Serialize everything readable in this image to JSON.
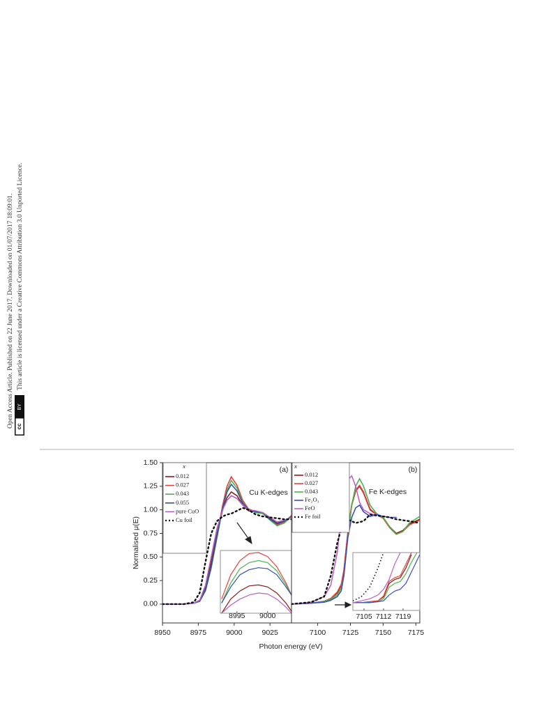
{
  "side_notes": [
    "Open Access Article. Published on 22 June 2017. Downloaded on 01/07/2017 18:09:01.",
    "This article is licensed under a Creative Commons Attribution 3.0 Unported Licence."
  ],
  "badge": [
    "cc",
    "BY"
  ],
  "chart_data": [
    {
      "type": "line",
      "panel_label": "(a)",
      "annotation": "Cu K-edges",
      "legend_title": "x",
      "ylabel": "Normalised μ(E)",
      "xlabel": "Photon energy (eV)",
      "xlim": [
        8950,
        9040
      ],
      "xticks": [
        8950,
        8975,
        9000,
        9025
      ],
      "ylim": [
        -0.2,
        1.5
      ],
      "yticks": [
        {
          "value": 0,
          "label": "0.00"
        },
        {
          "value": 0.25,
          "label": "0.25"
        },
        {
          "value": 0.5,
          "label": "0.50"
        },
        {
          "value": 0.75,
          "label": "0.75"
        },
        {
          "value": 1,
          "label": "1.00"
        },
        {
          "value": 1.25,
          "label": "1.25"
        },
        {
          "value": 1.5,
          "label": "1.50"
        }
      ],
      "x": [
        8950,
        8965,
        8972,
        8976,
        8980,
        8984,
        8988,
        8992,
        8995,
        8998,
        9002,
        9006,
        9010,
        9015,
        9020,
        9025,
        9030,
        9035,
        9040
      ],
      "series": [
        {
          "name": "0.012",
          "color": "#8b1a1a",
          "values": [
            0,
            0,
            0.01,
            0.04,
            0.18,
            0.45,
            0.75,
            1.0,
            1.13,
            1.19,
            1.15,
            1.05,
            0.99,
            0.98,
            0.96,
            0.91,
            0.86,
            0.88,
            0.93
          ]
        },
        {
          "name": "0.027",
          "color": "#e8413c",
          "values": [
            0,
            0,
            0.01,
            0.03,
            0.15,
            0.4,
            0.72,
            1.05,
            1.25,
            1.35,
            1.26,
            1.1,
            1.01,
            0.98,
            0.97,
            0.9,
            0.84,
            0.87,
            0.94
          ]
        },
        {
          "name": "0.043",
          "color": "#4cb34c",
          "values": [
            0,
            0,
            0.01,
            0.03,
            0.14,
            0.38,
            0.7,
            1.02,
            1.21,
            1.31,
            1.23,
            1.08,
            1.0,
            0.97,
            0.96,
            0.89,
            0.83,
            0.86,
            0.93
          ]
        },
        {
          "name": "0.055",
          "color": "#3050a8",
          "values": [
            0,
            0,
            0.01,
            0.03,
            0.15,
            0.4,
            0.72,
            1.02,
            1.19,
            1.27,
            1.2,
            1.07,
            1.0,
            0.98,
            0.97,
            0.9,
            0.85,
            0.88,
            0.93
          ]
        },
        {
          "name": "pure CuO",
          "color": "#b060c0",
          "values": [
            0,
            0,
            0.01,
            0.04,
            0.2,
            0.5,
            0.8,
            1.0,
            1.1,
            1.15,
            1.12,
            1.05,
            1.0,
            0.99,
            0.97,
            0.92,
            0.87,
            0.89,
            0.92
          ]
        },
        {
          "name": "Cu foil",
          "color": "#111111",
          "style": "dotted",
          "values": [
            0,
            0,
            0.02,
            0.12,
            0.45,
            0.75,
            0.88,
            0.93,
            0.95,
            0.96,
            0.99,
            1.02,
            1.0,
            0.95,
            0.93,
            0.92,
            0.91,
            0.9,
            0.9
          ]
        }
      ],
      "inset": {
        "xlim": [
          8992.3,
          9003.9
        ],
        "ylim": [
          1.05,
          1.36
        ],
        "xticks": [
          8995,
          9000
        ],
        "x": [
          8992.5,
          8994,
          8995.5,
          8997,
          8998.5,
          9000,
          9001.5,
          9003,
          9003.9
        ],
        "series": [
          {
            "color": "#e8413c",
            "values": [
              1.12,
              1.24,
              1.31,
              1.345,
              1.35,
              1.33,
              1.28,
              1.2,
              1.14
            ]
          },
          {
            "color": "#4cb34c",
            "values": [
              1.1,
              1.2,
              1.27,
              1.3,
              1.31,
              1.3,
              1.26,
              1.19,
              1.14
            ]
          },
          {
            "color": "#3050a8",
            "values": [
              1.1,
              1.18,
              1.24,
              1.265,
              1.275,
              1.27,
              1.24,
              1.18,
              1.14
            ]
          },
          {
            "color": "#8b1a1a",
            "values": [
              1.05,
              1.12,
              1.16,
              1.185,
              1.19,
              1.18,
              1.15,
              1.1,
              1.06
            ]
          },
          {
            "color": "#b060c0",
            "values": [
              1.05,
              1.09,
              1.12,
              1.14,
              1.15,
              1.145,
              1.12,
              1.08,
              1.05
            ]
          }
        ]
      }
    },
    {
      "type": "line",
      "panel_label": "(b)",
      "annotation": "Fe K-edges",
      "legend_title": "x",
      "xlim": [
        7080,
        7178
      ],
      "xticks": [
        7100,
        7125,
        7150,
        7175
      ],
      "ylim": [
        -0.2,
        1.5
      ],
      "x": [
        7080,
        7095,
        7105,
        7110,
        7115,
        7118,
        7120,
        7123,
        7126,
        7129,
        7132,
        7135,
        7140,
        7145,
        7150,
        7155,
        7160,
        7165,
        7170,
        7178
      ],
      "series": [
        {
          "name": "0.012",
          "color": "#8b1a1a",
          "values": [
            0,
            0.01,
            0.03,
            0.06,
            0.12,
            0.2,
            0.35,
            0.75,
            1.05,
            1.2,
            1.25,
            1.18,
            1.0,
            0.95,
            0.92,
            0.82,
            0.75,
            0.78,
            0.85,
            0.9
          ]
        },
        {
          "name": "0.027",
          "color": "#e8413c",
          "values": [
            0,
            0.01,
            0.03,
            0.06,
            0.13,
            0.21,
            0.36,
            0.76,
            1.06,
            1.21,
            1.26,
            1.19,
            1.01,
            0.95,
            0.91,
            0.81,
            0.74,
            0.77,
            0.84,
            0.89
          ]
        },
        {
          "name": "0.043",
          "color": "#4cb34c",
          "values": [
            0,
            0.01,
            0.03,
            0.05,
            0.1,
            0.17,
            0.3,
            0.7,
            1.05,
            1.25,
            1.33,
            1.25,
            1.05,
            0.96,
            0.92,
            0.82,
            0.74,
            0.77,
            0.86,
            0.93
          ]
        },
        {
          "name": "Fe₂O₃",
          "color": "#3a4fc0",
          "values": [
            0,
            0.01,
            0.02,
            0.04,
            0.08,
            0.14,
            0.3,
            0.7,
            0.92,
            1.02,
            1.05,
            0.98,
            0.93,
            0.95,
            0.93,
            0.92,
            0.92,
            null,
            null,
            null
          ]
        },
        {
          "name": "FeO",
          "color": "#c060c0",
          "values": [
            0,
            0.02,
            0.08,
            0.2,
            0.55,
            0.95,
            1.15,
            1.32,
            1.36,
            1.25,
            1.08,
            1.0,
            0.96,
            0.94,
            null,
            null,
            null,
            null,
            null,
            null
          ]
        },
        {
          "name": "Fe foil",
          "color": "#111111",
          "style": "dotted",
          "values": [
            0,
            0.02,
            0.08,
            0.3,
            0.65,
            0.8,
            0.86,
            0.9,
            0.88,
            0.86,
            0.87,
            0.88,
            0.95,
            0.94,
            0.93,
            0.92,
            0.9,
            0.89,
            0.88,
            0.86
          ]
        }
      ],
      "inset": {
        "xlim": [
          7101,
          7125
        ],
        "ylim": [
          0,
          0.3
        ],
        "xticks": [
          7105,
          7112,
          7119
        ],
        "x": [
          7101,
          7104,
          7107,
          7110,
          7112,
          7114,
          7116,
          7118,
          7120,
          7122,
          7124,
          7125
        ],
        "series": [
          {
            "color": "#8b1a1a",
            "values": [
              0.04,
              0.04,
              0.045,
              0.05,
              0.07,
              0.14,
              0.16,
              0.17,
              0.22,
              0.29,
              null,
              null
            ]
          },
          {
            "color": "#e8413c",
            "values": [
              0.04,
              0.04,
              0.045,
              0.05,
              0.075,
              0.15,
              0.17,
              0.18,
              0.24,
              0.3,
              null,
              null
            ]
          },
          {
            "color": "#4cb34c",
            "values": [
              0.04,
              0.04,
              0.042,
              0.045,
              0.06,
              0.12,
              0.14,
              0.15,
              0.19,
              0.25,
              0.3,
              null
            ]
          },
          {
            "color": "#3a4fc0",
            "values": [
              0.04,
              0.04,
              0.04,
              0.045,
              0.05,
              0.08,
              0.1,
              0.11,
              0.14,
              0.2,
              0.26,
              0.29
            ]
          },
          {
            "color": "#c060c0",
            "values": [
              0.04,
              0.05,
              0.06,
              0.08,
              0.11,
              0.16,
              0.24,
              0.3,
              null,
              null,
              null,
              null
            ]
          },
          {
            "color": "#111111",
            "style": "dotted",
            "values": [
              0.05,
              0.07,
              0.12,
              0.22,
              0.3,
              null,
              null,
              null,
              null,
              null,
              null,
              null
            ]
          }
        ]
      }
    }
  ]
}
